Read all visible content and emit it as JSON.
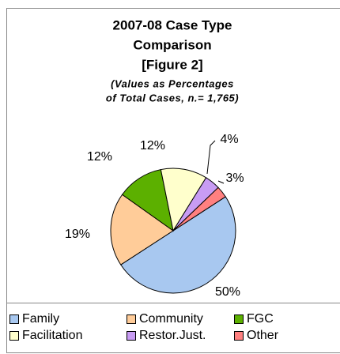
{
  "chart_data": {
    "type": "pie",
    "title": [
      "2007-08 Case Type",
      "Comparison",
      "[Figure 2]"
    ],
    "subtitle": [
      "(Values as Percentages",
      "of Total Cases, n.= 1,765)"
    ],
    "categories": [
      "Family",
      "Community",
      "FGC",
      "Facilitation",
      "Restor.Just.",
      "Other"
    ],
    "values": [
      50,
      19,
      12,
      12,
      4,
      3
    ],
    "value_labels": [
      "50%",
      "19%",
      "12%",
      "12%",
      "4%",
      "3%"
    ],
    "colors": [
      "#a8c8f0",
      "#ffcc99",
      "#5cb000",
      "#ffffcc",
      "#c89cf4",
      "#ff8080"
    ]
  }
}
